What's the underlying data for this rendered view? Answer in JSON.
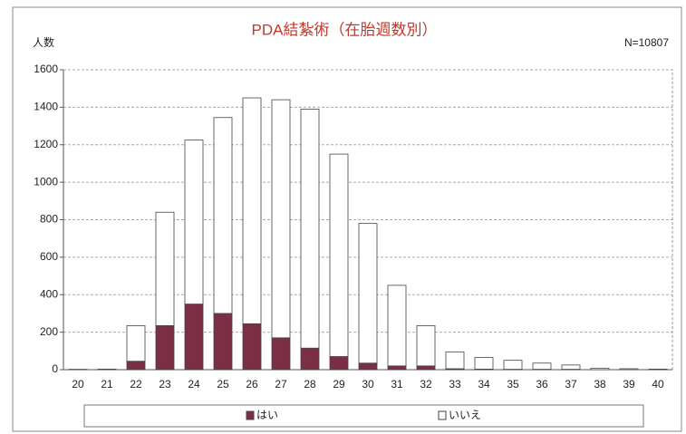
{
  "chart_data": {
    "type": "stacked_bar",
    "title": "PDA結紮術（在胎週数別）",
    "y_label": "人数",
    "annotation": "N=10807",
    "categories": [
      "20",
      "21",
      "22",
      "23",
      "24",
      "25",
      "26",
      "27",
      "28",
      "29",
      "30",
      "31",
      "32",
      "33",
      "34",
      "35",
      "36",
      "37",
      "38",
      "39",
      "40"
    ],
    "series": [
      {
        "name": "はい",
        "color": "#7b2f45",
        "values": [
          0,
          0,
          45,
          235,
          350,
          300,
          245,
          170,
          115,
          70,
          35,
          20,
          20,
          5,
          3,
          2,
          2,
          2,
          0,
          0,
          0
        ]
      },
      {
        "name": "いいえ",
        "color": "#ffffff",
        "values": [
          2,
          3,
          190,
          605,
          875,
          1045,
          1205,
          1270,
          1275,
          1080,
          745,
          430,
          215,
          90,
          62,
          48,
          33,
          23,
          8,
          5,
          3
        ]
      }
    ],
    "ylim": [
      0,
      1600
    ],
    "yticks": [
      0,
      200,
      400,
      600,
      800,
      1000,
      1200,
      1400,
      1600
    ],
    "grid": true,
    "legend": "bottom"
  }
}
